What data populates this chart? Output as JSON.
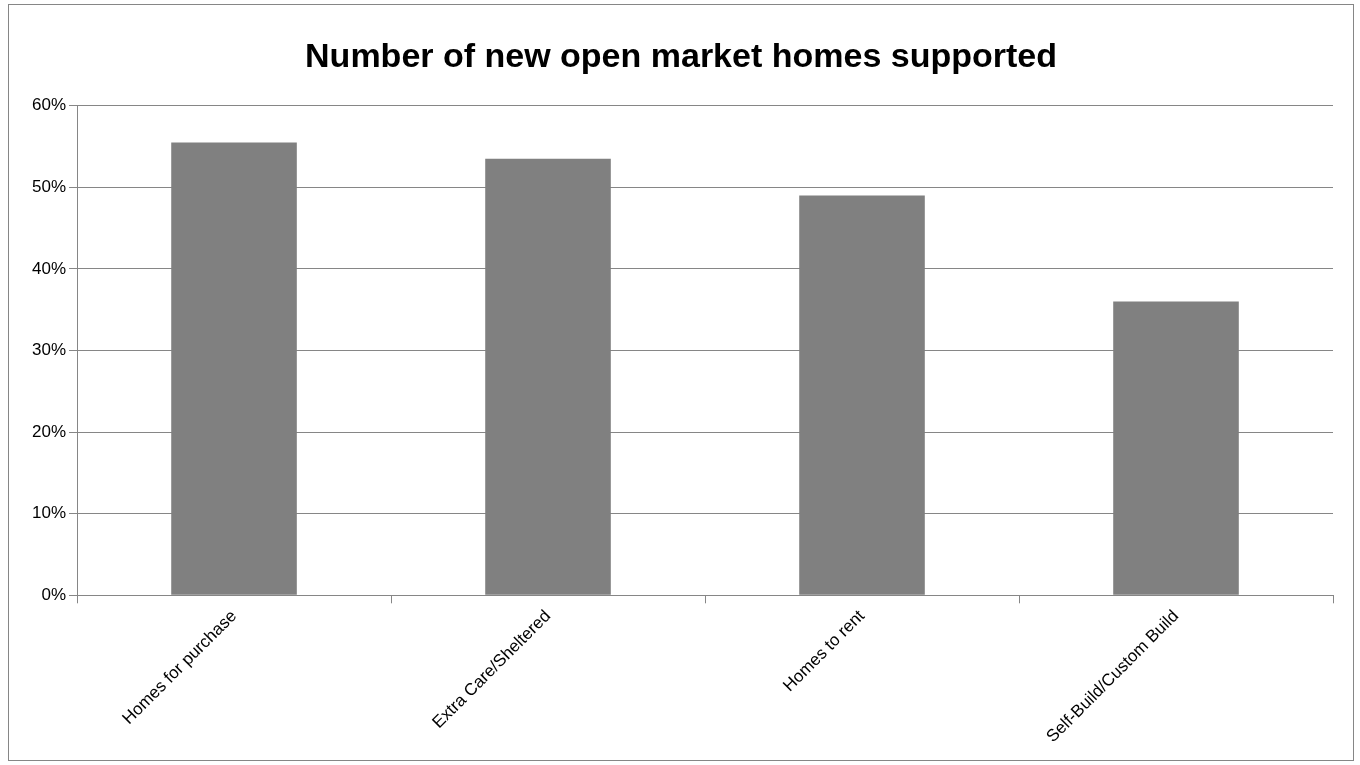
{
  "chart_data": {
    "type": "bar",
    "title": "Number of new open market homes supported",
    "categories": [
      "Homes for purchase",
      "Extra Care/Sheltered",
      "Homes to rent",
      "Self-Build/Custom Build"
    ],
    "values": [
      55.5,
      53.5,
      49,
      36
    ],
    "color": "#808080",
    "ylim": [
      0,
      60
    ],
    "yticks": [
      {
        "value": 0,
        "label": "0%"
      },
      {
        "value": 10,
        "label": "10%"
      },
      {
        "value": 20,
        "label": "20%"
      },
      {
        "value": 30,
        "label": "30%"
      },
      {
        "value": 40,
        "label": "40%"
      },
      {
        "value": 50,
        "label": "50%"
      },
      {
        "value": 60,
        "label": "60%"
      }
    ],
    "grid": "y",
    "legend": false
  }
}
